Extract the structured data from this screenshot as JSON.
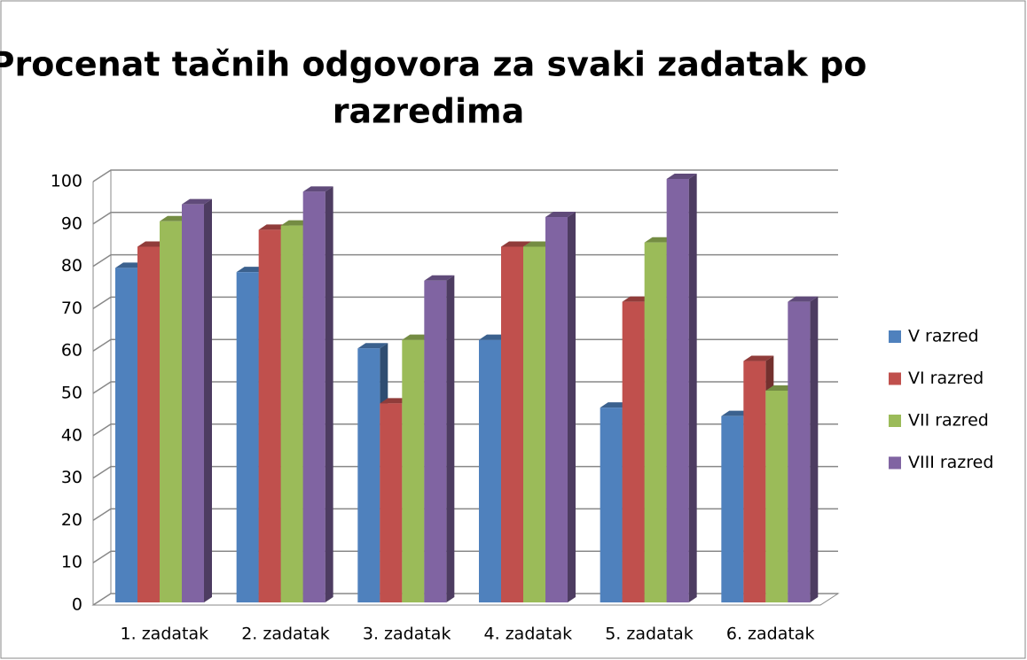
{
  "chart_data": {
    "type": "bar3d",
    "title": [
      "Procenat tačnih odgovora za svaki zadatak po",
      "razredima"
    ],
    "categories": [
      "1. zadatak",
      "2. zadatak",
      "3. zadatak",
      "4. zadatak",
      "5. zadatak",
      "6. zadatak"
    ],
    "series": [
      {
        "name": "V razred",
        "color": "#4f81bd",
        "values": [
          79,
          78,
          60,
          62,
          46,
          44
        ]
      },
      {
        "name": "VI razred",
        "color": "#c0504d",
        "values": [
          84,
          88,
          47,
          84,
          71,
          57
        ]
      },
      {
        "name": "VII razred",
        "color": "#9bbb59",
        "values": [
          90,
          89,
          62,
          84,
          85,
          50
        ]
      },
      {
        "name": "VIII razred",
        "color": "#8064a2",
        "values": [
          94,
          97,
          76,
          91,
          100,
          71
        ]
      }
    ],
    "ylim": [
      0,
      100
    ],
    "yticks": [
      0,
      10,
      20,
      30,
      40,
      50,
      60,
      70,
      80,
      90,
      100
    ],
    "grid": true,
    "legend": "right"
  }
}
